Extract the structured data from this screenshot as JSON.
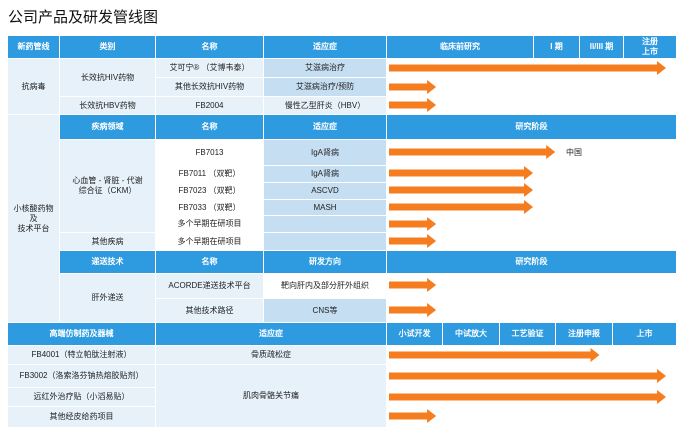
{
  "title": "公司产品及研发管线图",
  "colors": {
    "header": "#2e9be0",
    "label_bg": "#e6f1fa",
    "label_bg_dark": "#c6def1",
    "arrow": "#f57c1f"
  },
  "header1": {
    "new_drug": "新药管线",
    "category": "类别",
    "name": "名称",
    "indication": "适应症",
    "preclinical": "临床前研究",
    "phase1": "I 期",
    "phase23": "II/III 期",
    "launch": "注册\n上市"
  },
  "antiviral": {
    "label": "抗病毒",
    "hiv_category": "长效抗HIV药物",
    "hbv_category": "长效抗HBV药物",
    "rows": [
      {
        "name": "艾可宁® （艾博韦泰）",
        "indication": "艾滋病治疗"
      },
      {
        "name": "其他长效抗HIV药物",
        "indication": "艾滋病治疗/预防"
      },
      {
        "name": "FB2004",
        "indication": "慢性乙型肝炎（HBV）"
      }
    ]
  },
  "sirna": {
    "label": "小核酸药物\n及\n技术平台",
    "header_disease": {
      "area": "疾病领域",
      "name": "名称",
      "indication": "适应症",
      "stage": "研究阶段"
    },
    "cardio_category": "心血管 - 肾脏 - 代谢\n综合征（CKM）",
    "other_category": "其他疾病",
    "rows": [
      {
        "name": "FB7013",
        "indication": "IgA肾病",
        "note": "中国"
      },
      {
        "name": "FB7011 （双靶）",
        "indication": "IgA肾病"
      },
      {
        "name": "FB7023 （双靶）",
        "indication": "ASCVD"
      },
      {
        "name": "FB7033 （双靶）",
        "indication": "MASH"
      },
      {
        "name": "多个早期在研项目",
        "indication": ""
      },
      {
        "name": "多个早期在研项目",
        "indication": ""
      }
    ],
    "header_delivery": {
      "tech": "递送技术",
      "name": "名称",
      "direction": "研发方向",
      "stage": "研究阶段"
    },
    "delivery_category": "肝外递送",
    "delivery_rows": [
      {
        "name": "ACORDE递送技术平台",
        "direction": "靶向肝内及部分肝外组织"
      },
      {
        "name": "其他技术路径",
        "direction": "CNS等"
      }
    ]
  },
  "generic": {
    "header": {
      "label": "高端仿制药及器械",
      "indication": "适应症",
      "s1": "小试开发",
      "s2": "中试放大",
      "s3": "工艺验证",
      "s4": "注册申报",
      "s5": "上市"
    },
    "rows": [
      {
        "name": "FB4001（特立帕肽注射液）",
        "indication": "骨质疏松症"
      },
      {
        "name": "FB3002（洛索洛芬钠热熔胶贴剂）",
        "indication": ""
      },
      {
        "name": "远红外治疗贴（小滔易贴）",
        "indication": "肌肉骨骼关节痛"
      },
      {
        "name": "其他经皮给药项目",
        "indication": ""
      }
    ]
  },
  "progress": {
    "antiviral": [
      1.0,
      0.17,
      0.17
    ],
    "sirna": [
      0.6,
      0.52,
      0.52,
      0.52,
      0.17,
      0.17
    ],
    "delivery": [
      0.17,
      0.17
    ],
    "generic": [
      0.76,
      1.0,
      1.0,
      0.17
    ]
  }
}
